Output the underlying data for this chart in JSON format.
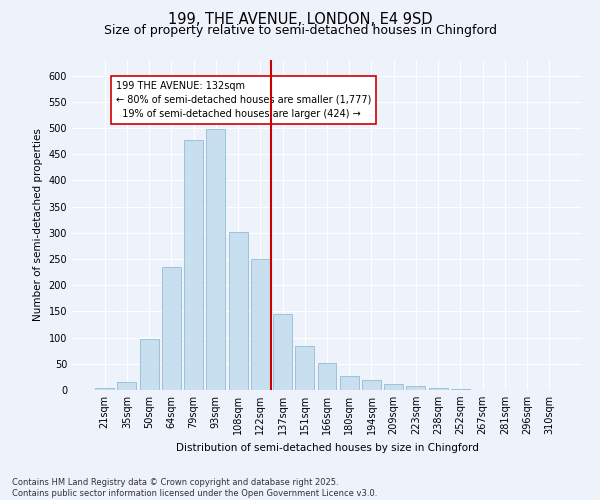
{
  "title": "199, THE AVENUE, LONDON, E4 9SD",
  "subtitle": "Size of property relative to semi-detached houses in Chingford",
  "xlabel": "Distribution of semi-detached houses by size in Chingford",
  "ylabel": "Number of semi-detached properties",
  "footer_line1": "Contains HM Land Registry data © Crown copyright and database right 2025.",
  "footer_line2": "Contains public sector information licensed under the Open Government Licence v3.0.",
  "bar_labels": [
    "21sqm",
    "35sqm",
    "50sqm",
    "64sqm",
    "79sqm",
    "93sqm",
    "108sqm",
    "122sqm",
    "137sqm",
    "151sqm",
    "166sqm",
    "180sqm",
    "194sqm",
    "209sqm",
    "223sqm",
    "238sqm",
    "252sqm",
    "267sqm",
    "281sqm",
    "296sqm",
    "310sqm"
  ],
  "bar_values": [
    3,
    15,
    97,
    235,
    478,
    498,
    302,
    250,
    145,
    84,
    51,
    26,
    19,
    11,
    7,
    4,
    1,
    0,
    0,
    0,
    0
  ],
  "bar_color": "#c8dff0",
  "bar_edge_color": "#93bcd4",
  "property_label": "199 THE AVENUE: 132sqm",
  "smaller_pct": 80,
  "smaller_count": 1777,
  "larger_pct": 19,
  "larger_count": 424,
  "vline_color": "#cc0000",
  "annotation_box_edgecolor": "#cc0000",
  "ylim": [
    0,
    630
  ],
  "yticks": [
    0,
    50,
    100,
    150,
    200,
    250,
    300,
    350,
    400,
    450,
    500,
    550,
    600
  ],
  "background_color": "#eef2fb",
  "grid_color": "#ffffff",
  "title_fontsize": 10.5,
  "subtitle_fontsize": 9,
  "axis_label_fontsize": 7.5,
  "tick_fontsize": 7,
  "annotation_fontsize": 7,
  "footer_fontsize": 6
}
